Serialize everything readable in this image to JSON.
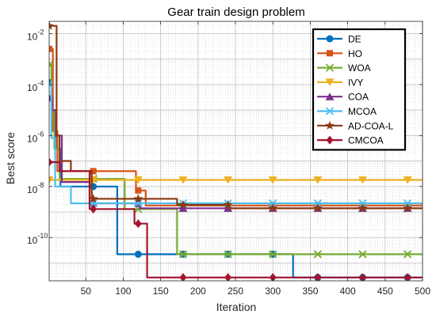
{
  "chart_data": {
    "type": "line",
    "title": "Gear train design problem",
    "xlabel": "Iteration",
    "ylabel": "Best score",
    "xlim": [
      1,
      500
    ],
    "ylim": [
      2e-12,
      0.03
    ],
    "yscale": "log",
    "grid": true,
    "minor_grid": true,
    "legend_position": "top-right",
    "x_ticks": [
      50,
      100,
      150,
      200,
      250,
      300,
      350,
      400,
      450,
      500
    ],
    "x_tick_labels": [
      "50",
      "100",
      "150",
      "200",
      "250",
      "300",
      "350",
      "400",
      "450",
      "500"
    ],
    "y_ticks": [
      {
        "value": 1e-10,
        "base": "10",
        "exp": "-10"
      },
      {
        "value": 1e-08,
        "base": "10",
        "exp": "-8"
      },
      {
        "value": 1e-06,
        "base": "10",
        "exp": "-6"
      },
      {
        "value": 0.0001,
        "base": "10",
        "exp": "-4"
      },
      {
        "value": 0.01,
        "base": "10",
        "exp": "-2"
      }
    ],
    "series": [
      {
        "name": "DE",
        "color": "#0072BD",
        "marker": "circle",
        "points": [
          [
            1,
            0.00012
          ],
          [
            5,
            1e-05
          ],
          [
            10,
            3e-07
          ],
          [
            16,
            1e-08
          ],
          [
            60,
            1e-08
          ],
          [
            90,
            1e-08
          ],
          [
            92,
            2.2e-11
          ],
          [
            326,
            2.2e-11
          ],
          [
            327,
            2.7e-12
          ],
          [
            500,
            2.7e-12
          ]
        ],
        "marker_x": [
          1,
          60,
          120,
          180,
          240,
          300,
          360,
          420,
          480
        ]
      },
      {
        "name": "HO",
        "color": "#D95319",
        "marker": "square",
        "points": [
          [
            1,
            0.0025
          ],
          [
            6,
            1.5e-06
          ],
          [
            12,
            4e-08
          ],
          [
            60,
            4e-08
          ],
          [
            115,
            4e-08
          ],
          [
            117,
            7e-09
          ],
          [
            128,
            7e-09
          ],
          [
            130,
            1.8e-09
          ],
          [
            500,
            1.8e-09
          ]
        ],
        "marker_x": [
          1,
          60,
          120,
          180,
          240,
          300,
          360,
          420,
          480
        ]
      },
      {
        "name": "WOA",
        "color": "#77AC30",
        "marker": "x",
        "points": [
          [
            1,
            0.0006
          ],
          [
            4,
            1e-05
          ],
          [
            8,
            3e-07
          ],
          [
            15,
            2e-08
          ],
          [
            60,
            2e-08
          ],
          [
            100,
            2e-08
          ],
          [
            102,
            1.3e-09
          ],
          [
            170,
            1.3e-09
          ],
          [
            172,
            2.2e-11
          ],
          [
            500,
            2.2e-11
          ]
        ],
        "marker_x": [
          1,
          60,
          120,
          180,
          240,
          300,
          360,
          420,
          480
        ]
      },
      {
        "name": "IVY",
        "color": "#EDB120",
        "marker": "triangle-down",
        "points": [
          [
            1,
            1.8e-08
          ],
          [
            500,
            1.8e-08
          ]
        ],
        "marker_x": [
          1,
          60,
          120,
          180,
          240,
          300,
          360,
          420,
          480
        ]
      },
      {
        "name": "COA",
        "color": "#7E2F8E",
        "marker": "triangle-up",
        "points": [
          [
            1,
            3e-05
          ],
          [
            5,
            1e-05
          ],
          [
            10,
            1e-06
          ],
          [
            18,
            1.5e-08
          ],
          [
            50,
            1.5e-08
          ],
          [
            55,
            2.2e-09
          ],
          [
            120,
            2.2e-09
          ],
          [
            122,
            1.4e-09
          ],
          [
            500,
            1.4e-09
          ]
        ],
        "marker_x": [
          1,
          60,
          120,
          180,
          240,
          300,
          360,
          420,
          480
        ]
      },
      {
        "name": "MCOA",
        "color": "#4DBEEE",
        "marker": "x",
        "points": [
          [
            1,
            0.0001
          ],
          [
            4,
            8e-07
          ],
          [
            9,
            1e-08
          ],
          [
            25,
            1e-08
          ],
          [
            30,
            2.2e-09
          ],
          [
            500,
            2.2e-09
          ]
        ],
        "marker_x": [
          1,
          60,
          120,
          180,
          240,
          300,
          360,
          420,
          480
        ]
      },
      {
        "name": "AD-COA-L",
        "color": "#8B3A10",
        "marker": "star",
        "points": [
          [
            1,
            0.02
          ],
          [
            9,
            0.02
          ],
          [
            11,
            1e-06
          ],
          [
            15,
            1e-07
          ],
          [
            30,
            4e-08
          ],
          [
            55,
            4e-08
          ],
          [
            58,
            3.3e-09
          ],
          [
            168,
            3.3e-09
          ],
          [
            172,
            1.9e-09
          ],
          [
            240,
            1.9e-09
          ],
          [
            242,
            1.4e-09
          ],
          [
            500,
            1.4e-09
          ]
        ],
        "marker_x": [
          1,
          60,
          120,
          180,
          240,
          300,
          360,
          420,
          480
        ]
      },
      {
        "name": "CMCOA",
        "color": "#A2142F",
        "marker": "diamond",
        "points": [
          [
            1,
            9e-08
          ],
          [
            15,
            4e-08
          ],
          [
            50,
            4e-08
          ],
          [
            55,
            1.3e-09
          ],
          [
            112,
            1.3e-09
          ],
          [
            115,
            3.5e-10
          ],
          [
            128,
            3.5e-10
          ],
          [
            132,
            2.7e-12
          ],
          [
            500,
            2.7e-12
          ]
        ],
        "marker_x": [
          1,
          60,
          120,
          180,
          240,
          300,
          360,
          420,
          480
        ]
      }
    ]
  }
}
